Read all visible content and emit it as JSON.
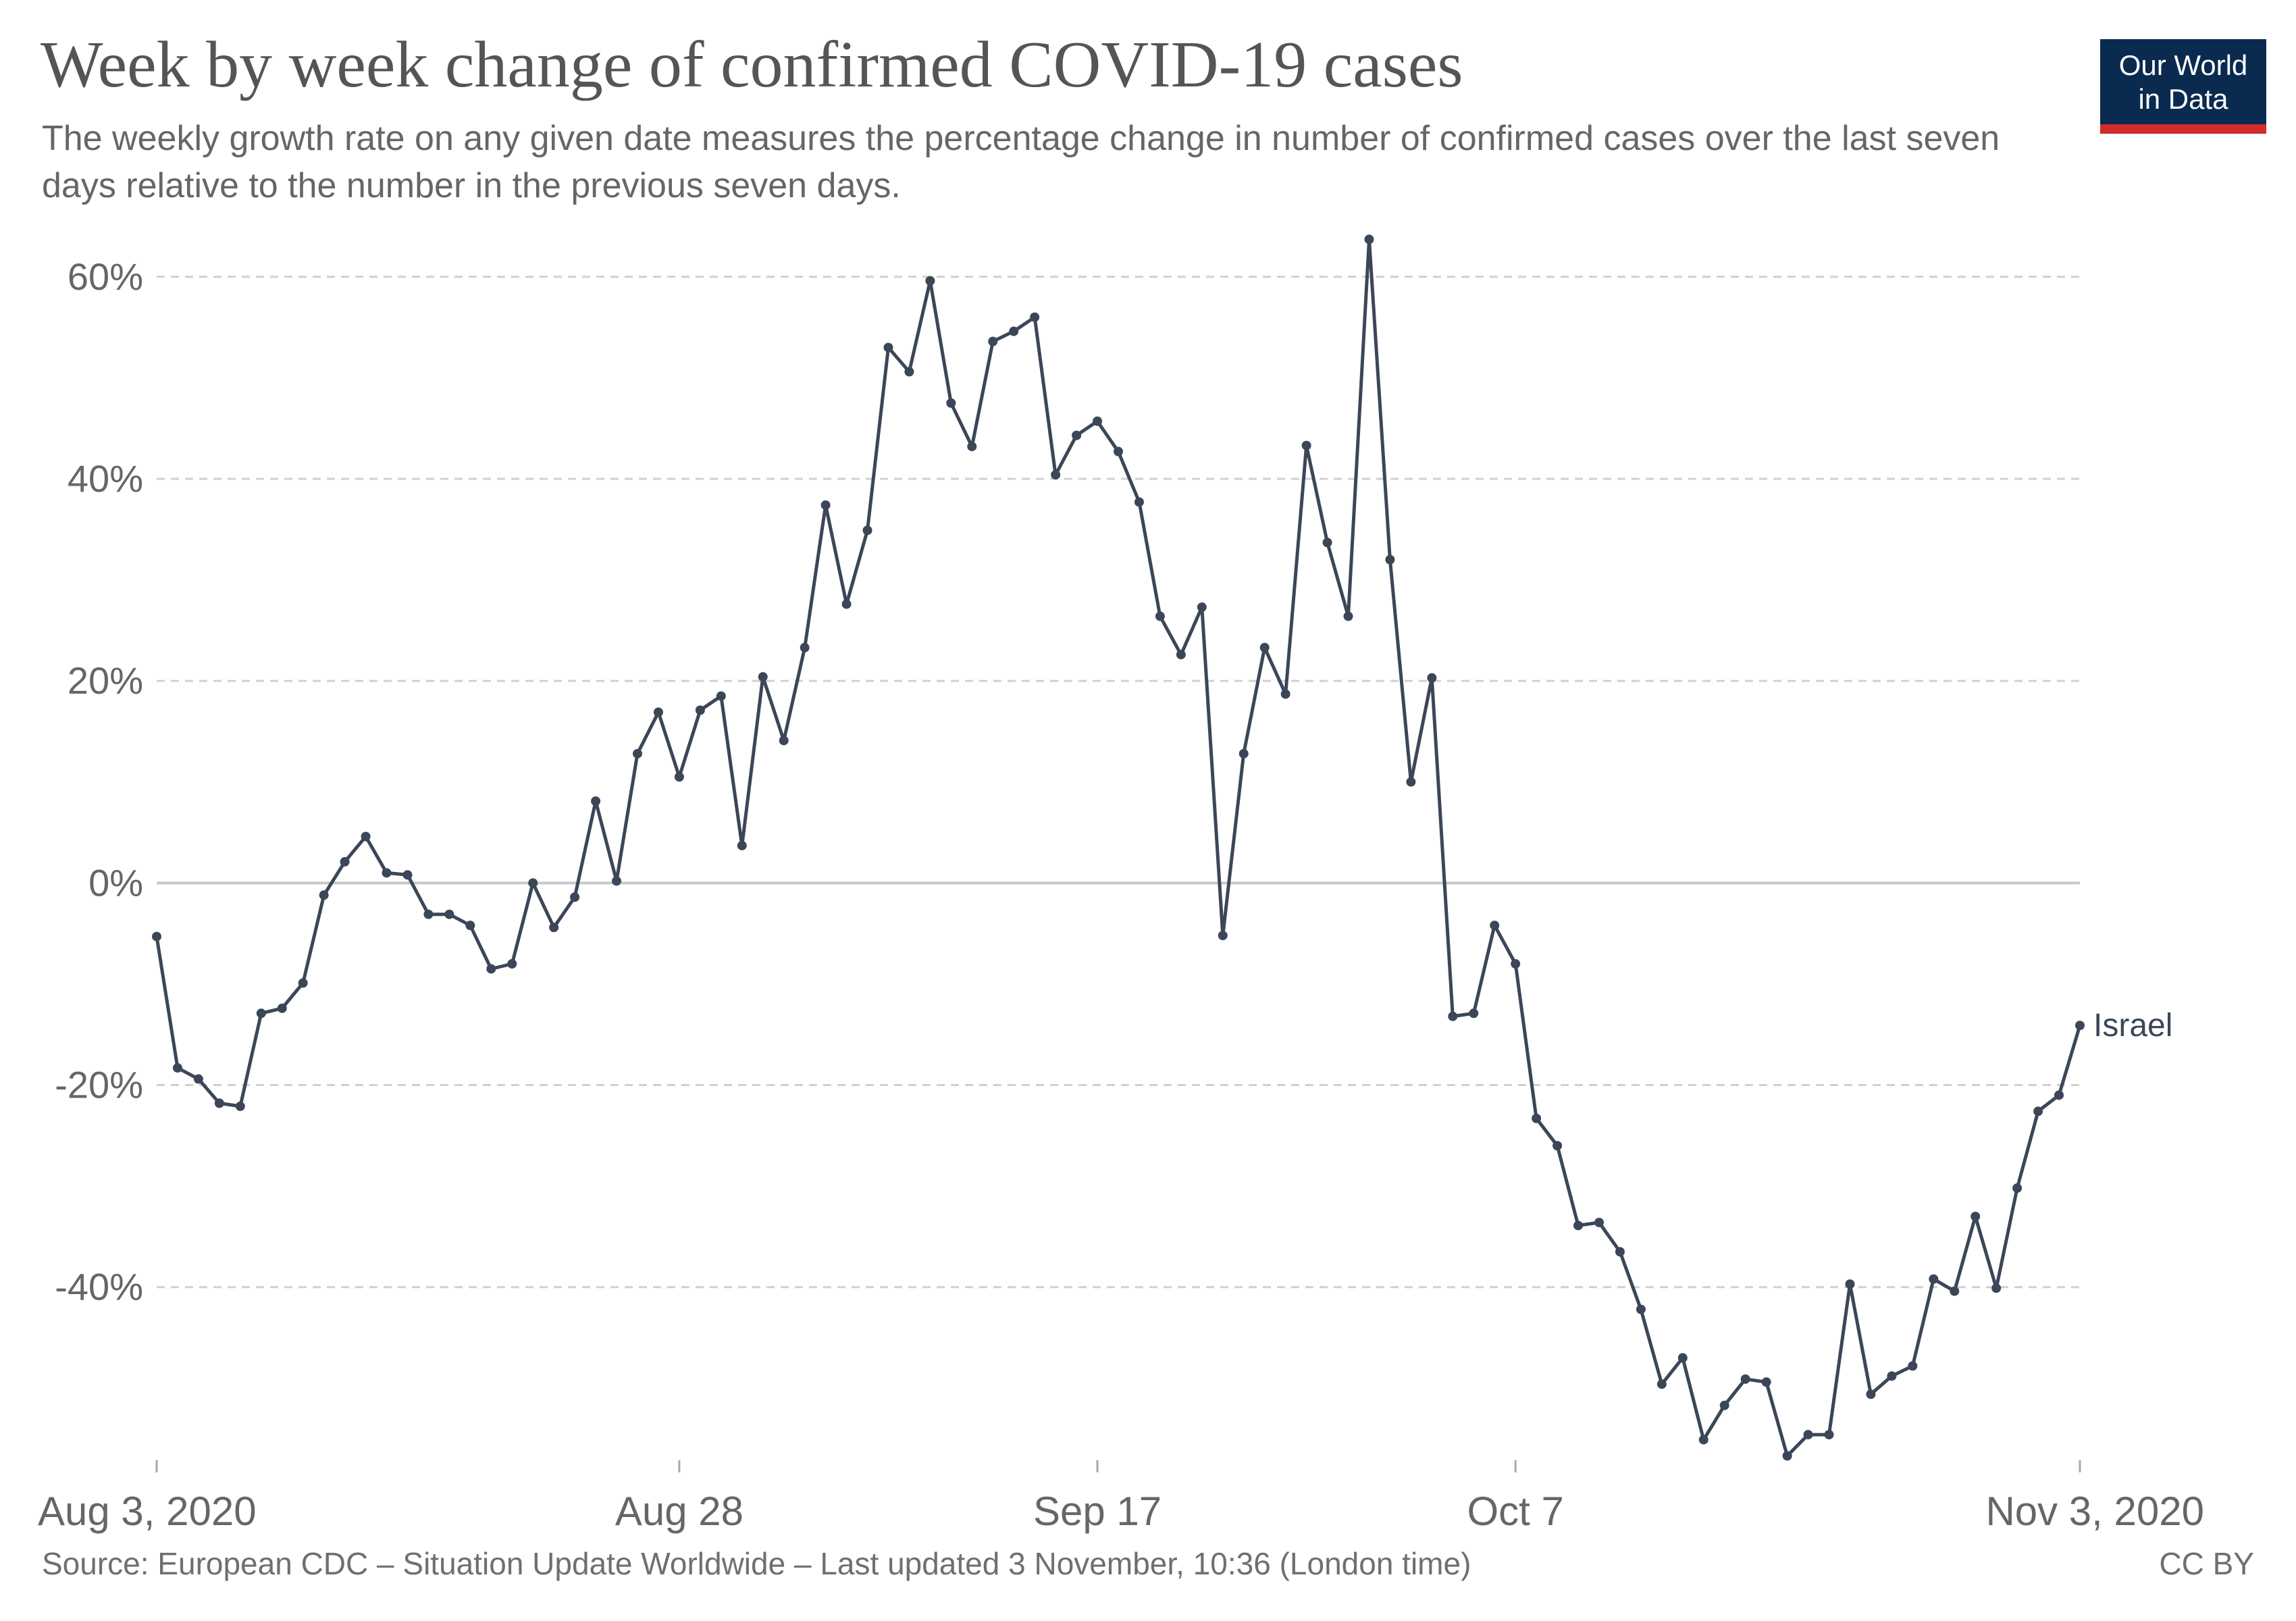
{
  "header": {
    "title": "Week by week change of confirmed COVID-19 cases",
    "subtitle": "The weekly growth rate on any given date measures the percentage change in number of confirmed cases over the last seven days relative to the number in the previous seven days."
  },
  "logo": {
    "line1": "Our World",
    "line2": "in Data",
    "bg_color": "#0b2a4f",
    "accent_color": "#d22b2b"
  },
  "footer": {
    "source": "Source: European CDC – Situation Update Worldwide – Last updated 3 November, 10:36 (London time)",
    "license": "CC BY"
  },
  "chart_data": {
    "type": "line",
    "title": "Week by week change of confirmed COVID-19 cases",
    "xlabel": "",
    "ylabel": "",
    "x_range": [
      "2020-08-03",
      "2020-11-03"
    ],
    "ylim": [
      -57,
      66
    ],
    "y_ticks": [
      {
        "value": 60,
        "label": "60%"
      },
      {
        "value": 40,
        "label": "40%"
      },
      {
        "value": 20,
        "label": "20%"
      },
      {
        "value": 0,
        "label": "0%"
      },
      {
        "value": -20,
        "label": "-20%"
      },
      {
        "value": -40,
        "label": "-40%"
      }
    ],
    "x_ticks": [
      {
        "date": "2020-08-03",
        "label": "Aug 3, 2020"
      },
      {
        "date": "2020-08-28",
        "label": "Aug 28"
      },
      {
        "date": "2020-09-17",
        "label": "Sep 17"
      },
      {
        "date": "2020-10-07",
        "label": "Oct 7"
      },
      {
        "date": "2020-11-03",
        "label": "Nov 3, 2020"
      }
    ],
    "grid": true,
    "legend": "end-of-line label",
    "series": [
      {
        "name": "Israel",
        "color": "#3b4758",
        "x": [
          "2020-08-03",
          "2020-08-04",
          "2020-08-05",
          "2020-08-06",
          "2020-08-07",
          "2020-08-08",
          "2020-08-09",
          "2020-08-10",
          "2020-08-11",
          "2020-08-12",
          "2020-08-13",
          "2020-08-14",
          "2020-08-15",
          "2020-08-16",
          "2020-08-17",
          "2020-08-18",
          "2020-08-19",
          "2020-08-20",
          "2020-08-21",
          "2020-08-22",
          "2020-08-23",
          "2020-08-24",
          "2020-08-25",
          "2020-08-26",
          "2020-08-27",
          "2020-08-28",
          "2020-08-29",
          "2020-08-30",
          "2020-08-31",
          "2020-09-01",
          "2020-09-02",
          "2020-09-03",
          "2020-09-04",
          "2020-09-05",
          "2020-09-06",
          "2020-09-07",
          "2020-09-08",
          "2020-09-09",
          "2020-09-10",
          "2020-09-11",
          "2020-09-12",
          "2020-09-13",
          "2020-09-14",
          "2020-09-15",
          "2020-09-16",
          "2020-09-17",
          "2020-09-18",
          "2020-09-19",
          "2020-09-20",
          "2020-09-21",
          "2020-09-22",
          "2020-09-23",
          "2020-09-24",
          "2020-09-25",
          "2020-09-26",
          "2020-09-27",
          "2020-09-28",
          "2020-09-29",
          "2020-09-30",
          "2020-10-01",
          "2020-10-02",
          "2020-10-03",
          "2020-10-04",
          "2020-10-05",
          "2020-10-06",
          "2020-10-07",
          "2020-10-08",
          "2020-10-09",
          "2020-10-10",
          "2020-10-11",
          "2020-10-12",
          "2020-10-13",
          "2020-10-14",
          "2020-10-15",
          "2020-10-16",
          "2020-10-17",
          "2020-10-18",
          "2020-10-19",
          "2020-10-20",
          "2020-10-21",
          "2020-10-22",
          "2020-10-23",
          "2020-10-24",
          "2020-10-25",
          "2020-10-26",
          "2020-10-27",
          "2020-10-28",
          "2020-10-29",
          "2020-10-30",
          "2020-10-31",
          "2020-11-01",
          "2020-11-02",
          "2020-11-03"
        ],
        "y": [
          -5.3,
          -18.3,
          -19.4,
          -21.8,
          -22.1,
          -12.9,
          -12.4,
          -9.9,
          -1.2,
          2.1,
          4.6,
          1.0,
          0.8,
          -3.1,
          -3.1,
          -4.2,
          -8.5,
          -8.0,
          0.0,
          -4.4,
          -1.4,
          8.1,
          0.2,
          12.8,
          16.9,
          10.5,
          17.1,
          18.5,
          3.7,
          20.4,
          14.1,
          23.3,
          37.4,
          27.6,
          34.9,
          53.0,
          50.6,
          59.6,
          47.5,
          43.2,
          53.6,
          54.6,
          56.0,
          40.4,
          44.3,
          45.7,
          42.7,
          37.7,
          26.4,
          22.6,
          27.3,
          -5.2,
          12.8,
          23.3,
          18.7,
          43.3,
          33.7,
          26.4,
          63.7,
          32.0,
          10.0,
          20.3,
          -13.2,
          -12.9,
          -4.2,
          -8.0,
          -23.3,
          -26.0,
          -33.9,
          -33.6,
          -36.5,
          -42.2,
          -49.6,
          -47.0,
          -55.1,
          -51.7,
          -49.1,
          -49.4,
          -56.7,
          -54.6,
          -54.6,
          -39.7,
          -50.6,
          -48.8,
          -47.8,
          -39.2,
          -40.4,
          -33.0,
          -40.1,
          -30.2,
          -22.6,
          -21.0,
          -14.1
        ]
      }
    ]
  }
}
